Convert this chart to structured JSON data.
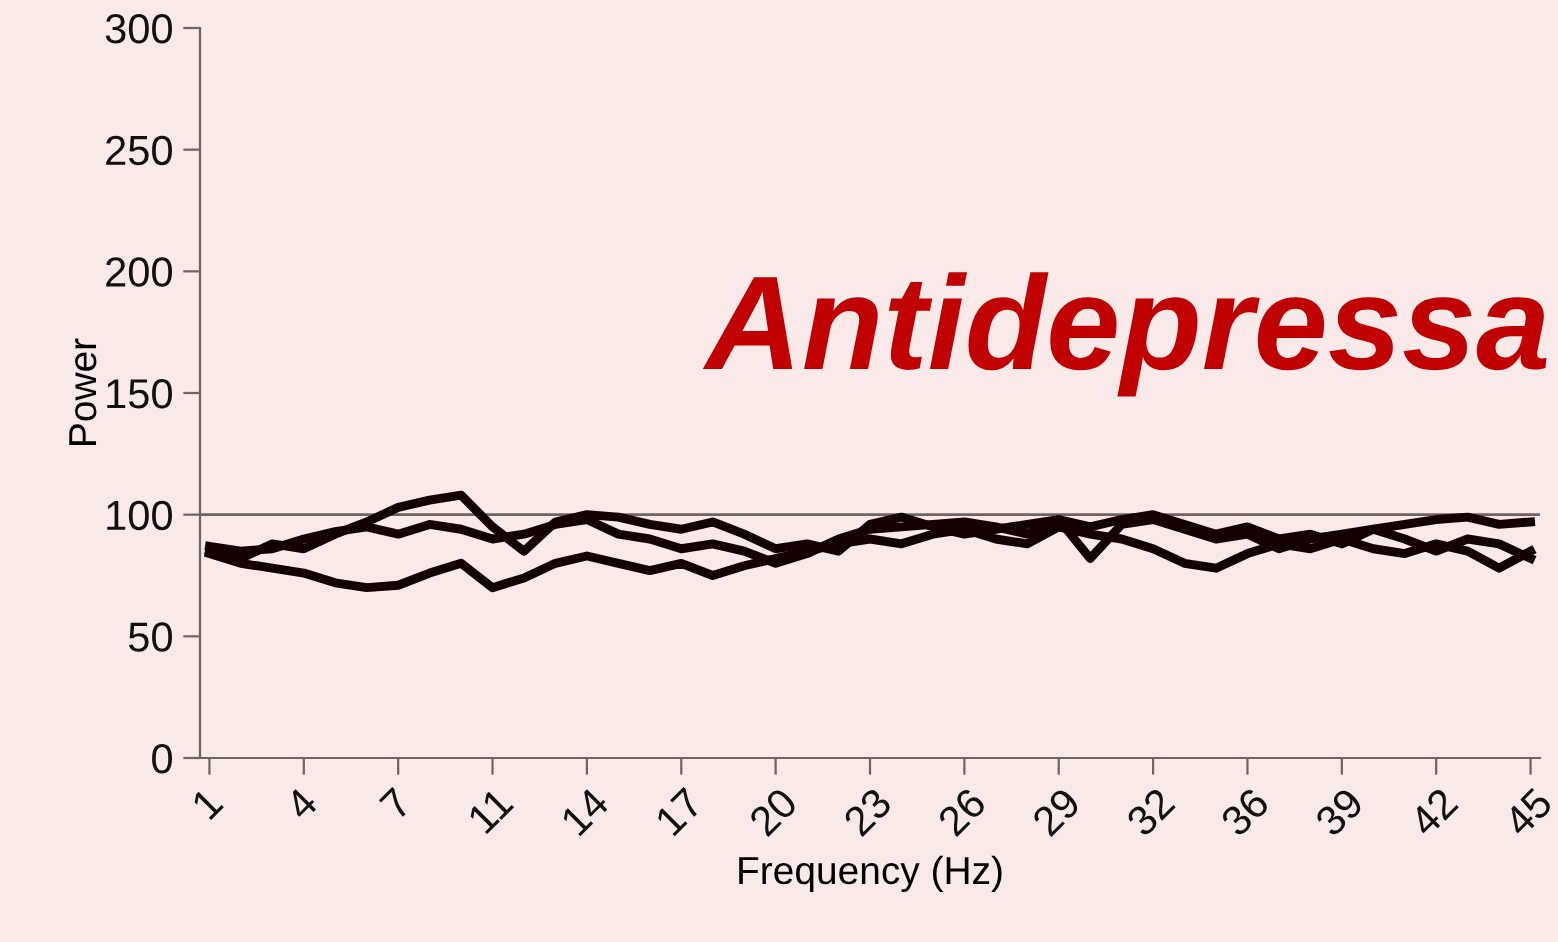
{
  "chart_data": {
    "type": "line",
    "xlabel": "Frequency (Hz)",
    "ylabel": "Power",
    "annotations": [
      "Antidepressa"
    ],
    "categories": [
      "1",
      null,
      null,
      "4",
      null,
      null,
      "7",
      null,
      null,
      "11",
      null,
      null,
      "14",
      null,
      null,
      "17",
      null,
      null,
      "20",
      null,
      null,
      "23",
      null,
      null,
      "26",
      null,
      null,
      "29",
      null,
      null,
      "32",
      null,
      null,
      "36",
      null,
      null,
      "39",
      null,
      null,
      "42",
      null,
      null,
      "45"
    ],
    "series": [
      {
        "color": "#140000",
        "values": [
          85,
          82,
          88,
          86,
          92,
          97,
          103,
          106,
          108,
          95,
          85,
          97,
          100,
          99,
          96,
          94,
          97,
          92,
          86,
          88,
          85,
          96,
          99,
          95,
          92,
          94,
          96,
          98,
          95,
          98,
          100,
          96,
          92,
          95,
          90,
          92,
          88,
          94,
          96,
          98,
          99,
          96,
          97
        ]
      },
      {
        "color": "#140000",
        "values": [
          84,
          80,
          78,
          76,
          72,
          70,
          71,
          76,
          80,
          70,
          74,
          80,
          83,
          80,
          77,
          80,
          75,
          79,
          82,
          85,
          88,
          90,
          88,
          92,
          94,
          90,
          88,
          95,
          92,
          90,
          86,
          80,
          78,
          84,
          88,
          86,
          90,
          86,
          84,
          88,
          85,
          78,
          85
        ]
      },
      {
        "color": "#140000",
        "values": [
          87,
          85,
          86,
          90,
          93,
          95,
          92,
          96,
          94,
          90,
          92,
          96,
          98,
          92,
          90,
          86,
          88,
          85,
          80,
          84,
          90,
          94,
          95,
          96,
          97,
          95,
          92,
          98,
          82,
          96,
          98,
          94,
          90,
          92,
          86,
          90,
          92,
          94,
          90,
          85,
          90,
          88,
          82
        ]
      }
    ],
    "ylim": [
      0,
      300
    ],
    "yticks": [
      0,
      50,
      100,
      150,
      200,
      250,
      300
    ],
    "ref_lines": [
      {
        "axis": "y",
        "value": 100,
        "color": "#6e6464"
      }
    ],
    "grid": false,
    "legend": false,
    "marker": "none",
    "line_style": "solid"
  }
}
